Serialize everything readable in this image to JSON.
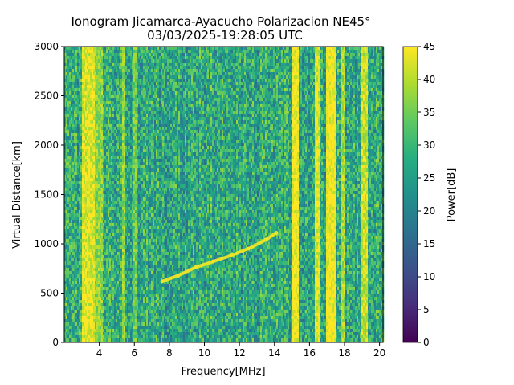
{
  "chart_data": {
    "type": "heatmap",
    "title": "Ionogram Jicamarca-Ayacucho Polarizacion NE45°",
    "subtitle": "03/03/2025-19:28:05 UTC",
    "xlabel": "Frequency[MHz]",
    "ylabel": "Virtual Distance[km]",
    "xlim": [
      2,
      20.2
    ],
    "ylim": [
      0,
      3000
    ],
    "xticks": [
      4,
      6,
      8,
      10,
      12,
      14,
      16,
      18,
      20
    ],
    "yticks": [
      0,
      500,
      1000,
      1500,
      2000,
      2500,
      3000
    ],
    "colorbar": {
      "label": "Power[dB]",
      "min": 0,
      "max": 45,
      "ticks": [
        0,
        5,
        10,
        15,
        20,
        25,
        30,
        35,
        40,
        45
      ],
      "colormap": "viridis"
    },
    "background_power_db": 27,
    "strong_bands": [
      {
        "f_start": 3.0,
        "f_end": 3.7,
        "power_db": 42
      },
      {
        "f_start": 3.7,
        "f_end": 4.2,
        "power_db": 36
      },
      {
        "f_start": 5.3,
        "f_end": 5.5,
        "power_db": 36
      },
      {
        "f_start": 5.9,
        "f_end": 6.1,
        "power_db": 34
      },
      {
        "f_start": 15.0,
        "f_end": 15.4,
        "power_db": 44
      },
      {
        "f_start": 16.3,
        "f_end": 16.6,
        "power_db": 42
      },
      {
        "f_start": 16.9,
        "f_end": 17.5,
        "power_db": 44
      },
      {
        "f_start": 17.8,
        "f_end": 18.0,
        "power_db": 38
      },
      {
        "f_start": 19.0,
        "f_end": 19.3,
        "power_db": 40
      }
    ],
    "trace": {
      "power_db": 44,
      "points": [
        [
          7.6,
          620
        ],
        [
          8.5,
          680
        ],
        [
          9.5,
          760
        ],
        [
          10.5,
          820
        ],
        [
          11.5,
          880
        ],
        [
          12.5,
          950
        ],
        [
          13.5,
          1040
        ],
        [
          14.1,
          1110
        ]
      ]
    }
  }
}
